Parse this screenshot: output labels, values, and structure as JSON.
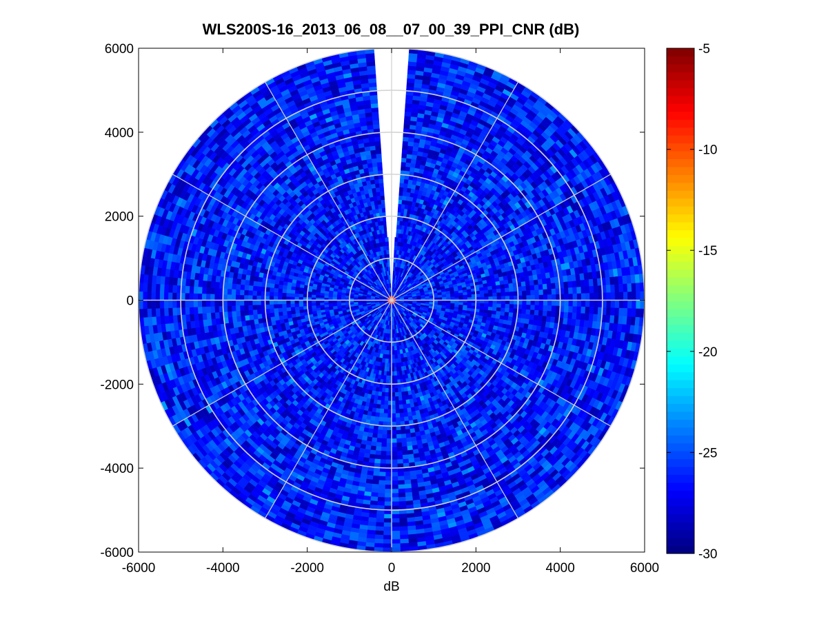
{
  "chart_data": {
    "type": "heatmap",
    "subtype": "polar-ppi",
    "title": "WLS200S-16_2013_06_08__07_00_39_PPI_CNR (dB)",
    "xlabel": "dB",
    "ylabel": "",
    "xlim": [
      -6000,
      6000
    ],
    "ylim": [
      -6000,
      6000
    ],
    "x_ticks": [
      -6000,
      -4000,
      -2000,
      0,
      2000,
      4000,
      6000
    ],
    "y_ticks": [
      -6000,
      -4000,
      -2000,
      0,
      2000,
      4000,
      6000
    ],
    "x_tick_labels": [
      "-6000",
      "-4000",
      "-2000",
      "0",
      "2000",
      "4000",
      "6000"
    ],
    "y_tick_labels": [
      "-6000",
      "-4000",
      "-2000",
      "0",
      "2000",
      "4000",
      "6000"
    ],
    "max_range": 6000,
    "range_rings": [
      1000,
      2000,
      3000,
      4000,
      5000,
      6000
    ],
    "azimuth_spokes_deg": [
      0,
      30,
      60,
      90,
      120,
      150,
      180,
      210,
      240,
      270,
      300,
      330
    ],
    "gap_sector_deg": [
      356,
      4
    ],
    "grid": true,
    "colormap": "jet",
    "colorbar": {
      "min": -30,
      "max": -5,
      "ticks": [
        -5,
        -10,
        -15,
        -20,
        -25,
        -30
      ],
      "tick_labels": [
        "-5",
        "-10",
        "-15",
        "-20",
        "-25",
        "-30"
      ]
    },
    "dominant_value_range_db": [
      -29,
      -24
    ],
    "near_range_value_db": -8
  },
  "colors": {
    "background": "#ffffff",
    "axes_frame": "#000000",
    "grid_lines": "#d4d4d4",
    "jet_low": "#00007f",
    "jet_mid": "#00ffff",
    "jet_high": "#7f0000"
  }
}
